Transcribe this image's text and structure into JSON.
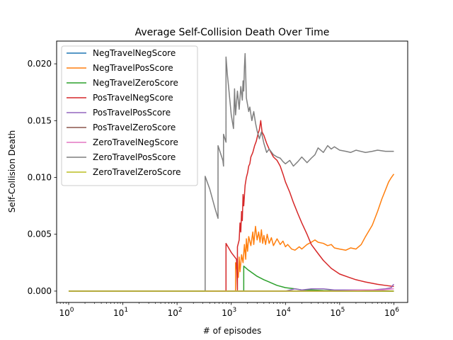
{
  "chart_data": {
    "type": "line",
    "title": "Average Self-Collision Death Over Time",
    "xlabel": "# of episodes",
    "ylabel": "Self-Collision Death",
    "xscale": "log",
    "xlim": [
      0.6,
      1800000
    ],
    "ylim": [
      -0.001,
      0.022
    ],
    "x_ticks": [
      1,
      10,
      100,
      1000,
      10000,
      100000,
      1000000
    ],
    "x_tick_labels": [
      {
        "base": "10",
        "exp": "0"
      },
      {
        "base": "10",
        "exp": "1"
      },
      {
        "base": "10",
        "exp": "2"
      },
      {
        "base": "10",
        "exp": "3"
      },
      {
        "base": "10",
        "exp": "4"
      },
      {
        "base": "10",
        "exp": "5"
      },
      {
        "base": "10",
        "exp": "6"
      }
    ],
    "y_ticks": [
      0.0,
      0.005,
      0.01,
      0.015,
      0.02
    ],
    "y_tick_labels": [
      "0.000",
      "0.005",
      "0.010",
      "0.015",
      "0.020"
    ],
    "legend_position": "top-left",
    "grid": false,
    "series": [
      {
        "name": "NegTravelNegScore",
        "color": "#1f77b4",
        "x": [
          1,
          1000000
        ],
        "y": [
          0,
          0
        ]
      },
      {
        "name": "NegTravelPosScore",
        "color": "#ff7f0e",
        "x": [
          1,
          1200,
          1200,
          1350,
          1400,
          1450,
          1550,
          1650,
          1750,
          1850,
          1900,
          2000,
          2100,
          2300,
          2500,
          2600,
          2800,
          3000,
          3200,
          3400,
          3600,
          3800,
          4000,
          4300,
          4600,
          5000,
          5500,
          6000,
          7000,
          8000,
          9000,
          10000,
          11000,
          13000,
          15000,
          18000,
          20000,
          25000,
          30000,
          35000,
          40000,
          50000,
          60000,
          70000,
          80000,
          100000,
          130000,
          160000,
          200000,
          250000,
          300000,
          400000,
          500000,
          600000,
          700000,
          800000,
          900000,
          1000000
        ],
        "y": [
          0,
          0,
          0.0025,
          0.0012,
          0.003,
          0.0017,
          0.0032,
          0.0025,
          0.0041,
          0.0028,
          0.0046,
          0.0035,
          0.0048,
          0.004,
          0.0052,
          0.0041,
          0.0057,
          0.0045,
          0.0052,
          0.0043,
          0.0054,
          0.0042,
          0.0049,
          0.0041,
          0.005,
          0.0042,
          0.0047,
          0.004,
          0.0046,
          0.0041,
          0.0044,
          0.0039,
          0.0041,
          0.0037,
          0.0036,
          0.0039,
          0.0037,
          0.0041,
          0.0043,
          0.0045,
          0.0043,
          0.0042,
          0.004,
          0.0041,
          0.0038,
          0.0037,
          0.0036,
          0.0038,
          0.0037,
          0.0041,
          0.0048,
          0.0058,
          0.007,
          0.0081,
          0.0089,
          0.0096,
          0.01,
          0.0103
        ]
      },
      {
        "name": "NegTravelZeroScore",
        "color": "#2ca02c",
        "x": [
          1,
          1700,
          1700,
          2000,
          3000,
          4000,
          5000,
          7000,
          10000,
          15000,
          20000,
          30000,
          50000,
          100000,
          300000,
          1000000
        ],
        "y": [
          0,
          0,
          0.0022,
          0.0019,
          0.0013,
          0.001,
          0.0008,
          0.0005,
          0.0003,
          0.0002,
          0.0001,
          0.0001,
          5e-05,
          3e-05,
          1e-05,
          0.0
        ]
      },
      {
        "name": "PosTravelNegScore",
        "color": "#d62728",
        "x": [
          1,
          800,
          800,
          1000,
          1250,
          1300,
          1300,
          1400,
          1450,
          1500,
          1550,
          1600,
          1650,
          1700,
          1800,
          1900,
          2000,
          2100,
          2200,
          2300,
          2500,
          2700,
          2900,
          3100,
          3300,
          3500,
          3700,
          4000,
          4500,
          5000,
          6000,
          7000,
          8000,
          9000,
          10000,
          12000,
          14000,
          17000,
          20000,
          25000,
          30000,
          40000,
          50000,
          70000,
          100000,
          150000,
          200000,
          300000,
          500000,
          700000,
          1000000
        ],
        "y": [
          0,
          0,
          0.0042,
          0.0034,
          0.0028,
          0.0001,
          0.0039,
          0.0045,
          0.006,
          0.0052,
          0.007,
          0.0062,
          0.0085,
          0.0075,
          0.0093,
          0.01,
          0.0104,
          0.011,
          0.0112,
          0.0118,
          0.0122,
          0.0128,
          0.0132,
          0.0138,
          0.0142,
          0.015,
          0.014,
          0.0137,
          0.013,
          0.0125,
          0.0118,
          0.0115,
          0.011,
          0.0103,
          0.0096,
          0.0087,
          0.0078,
          0.0068,
          0.006,
          0.005,
          0.0041,
          0.0033,
          0.0027,
          0.002,
          0.0015,
          0.0012,
          0.001,
          0.0008,
          0.0006,
          0.0005,
          0.0004
        ]
      },
      {
        "name": "PosTravelPosScore",
        "color": "#9467bd",
        "x": [
          1,
          10000,
          15000,
          20000,
          30000,
          50000,
          80000,
          100000,
          200000,
          400000,
          700000,
          900000,
          950000,
          1000000
        ],
        "y": [
          0,
          0,
          0.0002,
          0.0001,
          0.0002,
          0.0002,
          0.0001,
          0.0001,
          0.0001,
          0.0001,
          0.0002,
          0.0003,
          0.0005,
          0.0006
        ]
      },
      {
        "name": "PosTravelZeroScore",
        "color": "#8c564b",
        "x": [
          1,
          1000000
        ],
        "y": [
          0,
          0
        ]
      },
      {
        "name": "ZeroTravelNegScore",
        "color": "#e377c2",
        "x": [
          1,
          100000,
          300000,
          600000,
          1000000
        ],
        "y": [
          0,
          0,
          0.0001,
          0.0001,
          0.0002
        ]
      },
      {
        "name": "ZeroTravelPosScore",
        "color": "#7f7f7f",
        "x": [
          1,
          330,
          330,
          400,
          500,
          570,
          570,
          700,
          720,
          720,
          800,
          800,
          850,
          900,
          1000,
          1100,
          1150,
          1200,
          1300,
          1400,
          1500,
          1600,
          1650,
          1700,
          1750,
          1800,
          1850,
          1900,
          2000,
          2100,
          2200,
          2400,
          2600,
          2800,
          3000,
          3300,
          3600,
          4000,
          4500,
          5000,
          6000,
          7000,
          8000,
          9000,
          10000,
          12000,
          14000,
          17000,
          20000,
          25000,
          30000,
          35000,
          40000,
          50000,
          60000,
          70000,
          80000,
          100000,
          130000,
          160000,
          200000,
          300000,
          400000,
          500000,
          700000,
          1000000
        ],
        "y": [
          0,
          0,
          0.0101,
          0.009,
          0.0073,
          0.0064,
          0.0128,
          0.0115,
          0.011,
          0.0138,
          0.0131,
          0.0206,
          0.019,
          0.0178,
          0.0155,
          0.0143,
          0.0178,
          0.0155,
          0.0176,
          0.016,
          0.018,
          0.0168,
          0.0185,
          0.0176,
          0.0197,
          0.0209,
          0.019,
          0.017,
          0.0164,
          0.0158,
          0.0162,
          0.015,
          0.0158,
          0.0148,
          0.0141,
          0.0134,
          0.014,
          0.013,
          0.0122,
          0.0125,
          0.012,
          0.0118,
          0.0117,
          0.0114,
          0.0112,
          0.0115,
          0.011,
          0.0114,
          0.0118,
          0.0113,
          0.0117,
          0.012,
          0.0126,
          0.0122,
          0.0128,
          0.0125,
          0.0127,
          0.0124,
          0.0123,
          0.0122,
          0.0124,
          0.0122,
          0.0123,
          0.0124,
          0.0123,
          0.0123
        ]
      },
      {
        "name": "ZeroTravelZeroScore",
        "color": "#bcbd22",
        "x": [
          1,
          1000000
        ],
        "y": [
          0,
          0
        ]
      }
    ]
  }
}
